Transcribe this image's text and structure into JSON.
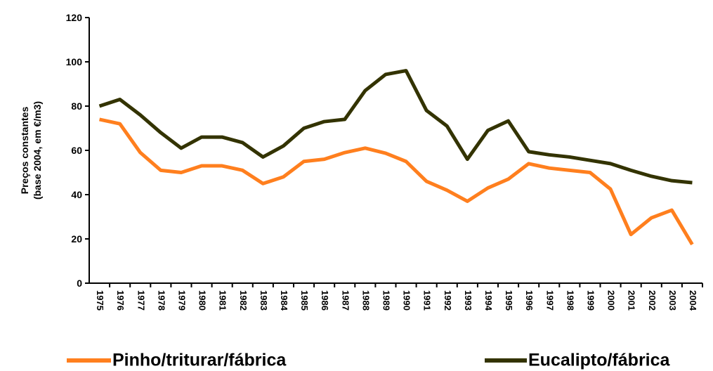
{
  "chart_data": {
    "type": "line",
    "ylabel": [
      "Preços constantes",
      "(base 2004, em €/m3)"
    ],
    "categories": [
      "1975",
      "1976",
      "1977",
      "1978",
      "1979",
      "1980",
      "1981",
      "1982",
      "1983",
      "1984",
      "1985",
      "1986",
      "1987",
      "1988",
      "1989",
      "1990",
      "1991",
      "1992",
      "1993",
      "1994",
      "1995",
      "1996",
      "1997",
      "1998",
      "1999",
      "2000",
      "2001",
      "2002",
      "2003",
      "2004"
    ],
    "series": [
      {
        "name": "Pinho/triturar/fábrica",
        "color": "#ff7f1e",
        "values": [
          74,
          72,
          59,
          51,
          50,
          53,
          53,
          51,
          45,
          48,
          55,
          56,
          59,
          61,
          58.7,
          55,
          46,
          42,
          37,
          43,
          47,
          54,
          52,
          51,
          50,
          42.5,
          22,
          29.5,
          33,
          17.5
        ]
      },
      {
        "name": "Eucalipto/fábrica",
        "color": "#333300",
        "values": [
          80,
          83,
          76,
          68,
          61,
          66,
          66,
          63.5,
          57,
          62,
          70,
          73,
          74,
          87,
          94.3,
          96,
          78,
          71,
          56,
          69,
          73.3,
          59.4,
          58,
          57,
          55.5,
          54,
          51,
          48.3,
          46.3,
          45.4
        ]
      }
    ],
    "ylim": [
      0,
      120
    ],
    "yticks": [
      0,
      20,
      40,
      60,
      80,
      100,
      120
    ],
    "grid": false
  }
}
